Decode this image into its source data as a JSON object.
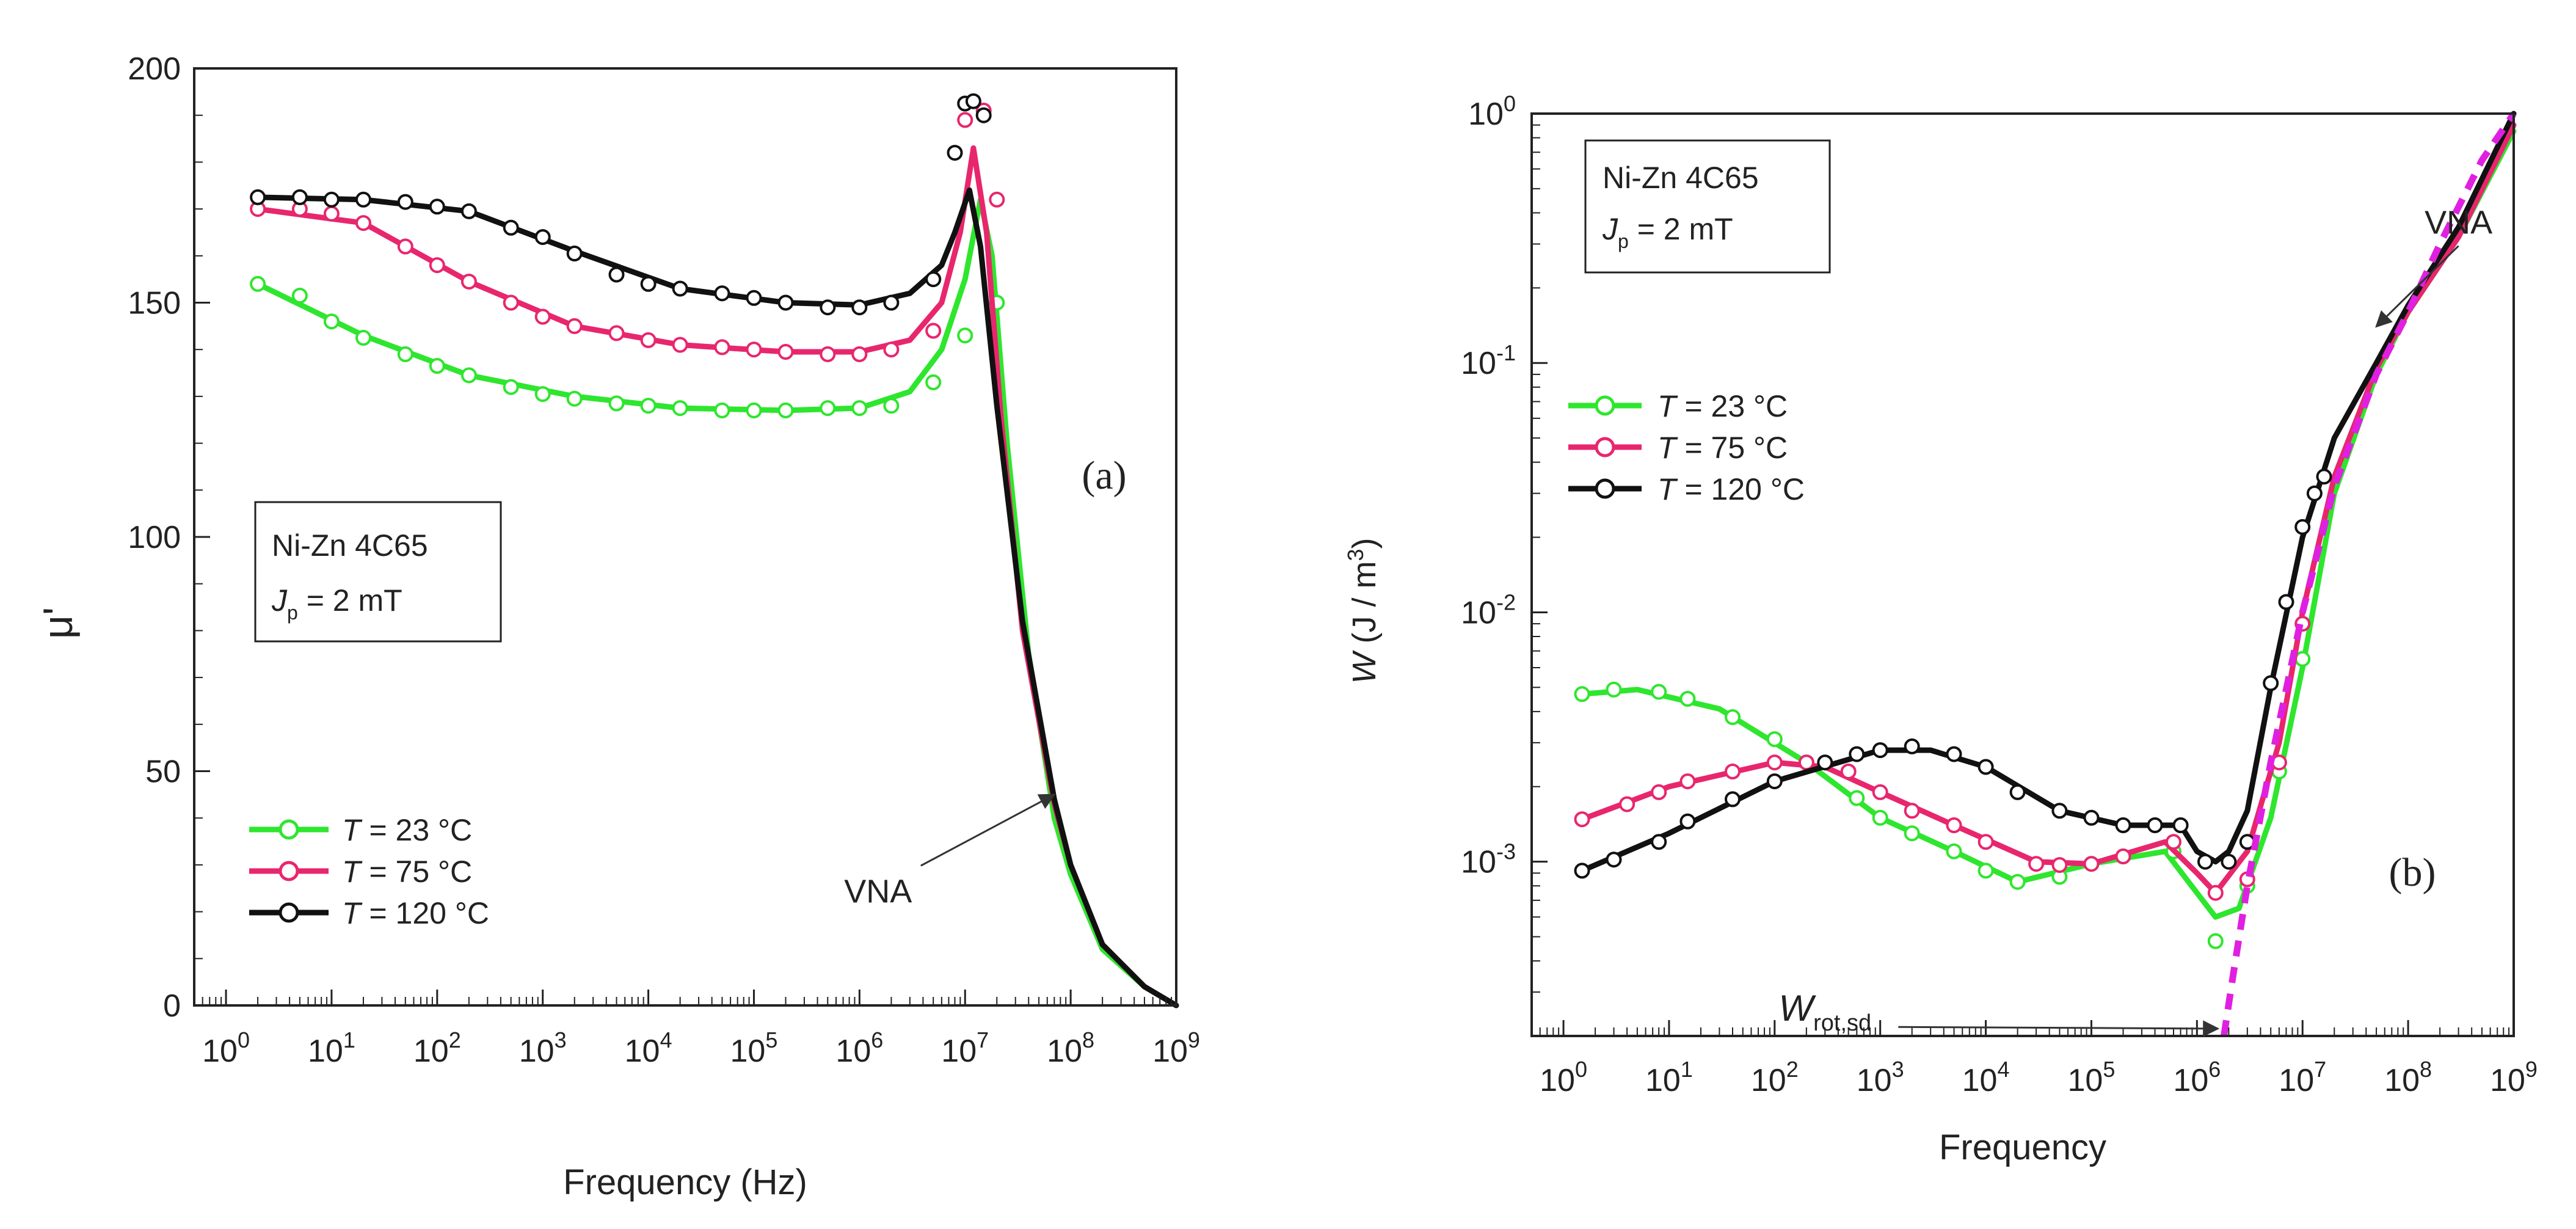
{
  "figure": {
    "line_colors": {
      "green": "#2ee62e",
      "pink": "#e8266e",
      "black": "#111111",
      "magenta_dashed": "#e020e0"
    }
  },
  "chart_data": [
    {
      "id": "a",
      "type": "line",
      "panel_label": "(a)",
      "title": "",
      "xlabel": "Frequency (Hz)",
      "ylabel": "μ'",
      "x_scale": "log10",
      "xlim": [
        0.5,
        1000000000.0
      ],
      "ylim": [
        0,
        200
      ],
      "x_tick_exponents": [
        0,
        1,
        2,
        3,
        4,
        5,
        6,
        7,
        8,
        9
      ],
      "x_tick_base": "10",
      "y_ticks": [
        0,
        50,
        100,
        150,
        200
      ],
      "y_tick_labels": [
        "0",
        "50",
        "100",
        "150",
        "200"
      ],
      "info_box": {
        "line1": "Ni-Zn 4C65",
        "line2_sym": "J",
        "line2_sub": "p",
        "line2_rest": " = 2 mT"
      },
      "annotation": {
        "text": "VNA",
        "text_at": [
          1500000.0,
          22
        ],
        "arrow_to": [
          70000000.0,
          45
        ]
      },
      "legend": {
        "position": "bottom-left"
      },
      "series": [
        {
          "name": "T = 23 °C",
          "legend_sym": "T",
          "legend_rest": " = 23 °C",
          "color": "#2ee62e",
          "x": [
            2,
            5,
            10,
            20,
            50,
            100,
            200,
            500,
            1000,
            2000,
            5000,
            10000,
            20000,
            50000,
            100000,
            200000,
            500000,
            1000000,
            2000000,
            5000000,
            10000000,
            20000000
          ],
          "values": [
            154,
            151.5,
            146,
            142.5,
            139,
            136.5,
            134.5,
            132,
            130.5,
            129.5,
            128.5,
            128,
            127.5,
            127,
            127,
            127,
            127.5,
            127.5,
            128,
            133,
            143,
            150
          ],
          "curve_x": [
            2,
            20,
            200,
            2000,
            20000,
            200000,
            1000000,
            3000000,
            6000000,
            10000000,
            14000000,
            18000000,
            25000000,
            40000000,
            70000000,
            100000000,
            200000000,
            500000000,
            1000000000
          ],
          "curve_y": [
            154,
            143,
            134.5,
            130,
            127.5,
            127,
            127.5,
            131,
            140,
            155,
            172,
            160,
            120,
            75,
            40,
            28,
            12,
            4,
            0
          ]
        },
        {
          "name": "T = 75 °C",
          "legend_sym": "T",
          "legend_rest": " = 75 °C",
          "color": "#e8266e",
          "x": [
            2,
            5,
            10,
            20,
            50,
            100,
            200,
            500,
            1000,
            2000,
            5000,
            10000,
            20000,
            50000,
            100000,
            200000,
            500000,
            1000000,
            2000000,
            5000000,
            10000000,
            15000000,
            20000000
          ],
          "values": [
            170,
            170,
            169,
            167,
            162,
            158,
            154.5,
            150,
            147,
            145,
            143.5,
            142,
            141,
            140.5,
            140,
            139.5,
            139,
            139,
            140,
            144,
            189,
            191,
            172
          ],
          "curve_x": [
            2,
            20,
            200,
            2000,
            20000,
            200000,
            1000000,
            3000000,
            6000000,
            9000000,
            12000000,
            16000000,
            22000000,
            35000000,
            70000000,
            100000000,
            200000000,
            500000000,
            1000000000
          ],
          "curve_y": [
            170,
            167,
            154.5,
            145,
            141,
            139.5,
            139.5,
            142,
            150,
            165,
            183,
            165,
            125,
            80,
            43,
            30,
            13,
            4,
            0
          ]
        },
        {
          "name": "T = 120 °C",
          "legend_sym": "T",
          "legend_rest": " = 120 °C",
          "color": "#111111",
          "x": [
            2,
            5,
            10,
            20,
            50,
            100,
            200,
            500,
            1000,
            2000,
            5000,
            10000,
            20000,
            50000,
            100000,
            200000,
            500000,
            1000000,
            2000000,
            5000000,
            8000000,
            10000000,
            12000000,
            15000000
          ],
          "values": [
            172.5,
            172.5,
            172,
            172,
            171.5,
            170.5,
            169.5,
            166,
            164,
            160.5,
            156,
            154,
            153,
            152,
            151,
            150,
            149,
            149,
            150,
            155,
            182,
            192.5,
            193,
            190
          ],
          "curve_x": [
            2,
            20,
            200,
            2000,
            20000,
            200000,
            1000000,
            3000000,
            6000000,
            8000000,
            11000000,
            14000000,
            20000000,
            35000000,
            70000000,
            100000000,
            200000000,
            500000000,
            1000000000
          ],
          "curve_y": [
            172.5,
            172,
            169.5,
            161,
            153,
            150,
            149.5,
            152,
            158,
            165,
            174,
            162,
            128,
            82,
            44,
            30,
            13,
            4,
            0
          ]
        }
      ]
    },
    {
      "id": "b",
      "type": "line",
      "panel_label": "(b)",
      "title": "",
      "xlabel": "Frequency",
      "ylabel_sym": "W",
      "ylabel_rest": " (J / m",
      "ylabel_sup": "3",
      "ylabel_close": ")",
      "x_scale": "log10",
      "y_scale": "log10",
      "xlim": [
        0.5,
        1000000000.0
      ],
      "ylim": [
        0.0002,
        1.0
      ],
      "x_tick_exponents": [
        0,
        1,
        2,
        3,
        4,
        5,
        6,
        7,
        8,
        9
      ],
      "x_tick_base": "10",
      "y_tick_exponents": [
        -3,
        -2,
        -1,
        0
      ],
      "y_tick_base": "10",
      "y_tick_top_label": "10",
      "info_box": {
        "line1": "Ni-Zn 4C65",
        "line2_sym": "J",
        "line2_sub": "p",
        "line2_rest": " = 2 mT"
      },
      "annotations": [
        {
          "text": "VNA",
          "text_at": [
            300000000.0,
            0.33
          ],
          "arrow_to": [
            50000000.0,
            0.14
          ]
        },
        {
          "text_sym": "W",
          "text_sub": "rot,sd",
          "text_at": [
            300,
            0.00023
          ],
          "arrow_to": [
            1800000.0,
            0.0002
          ]
        }
      ],
      "legend": {
        "position": "upper-left"
      },
      "series": [
        {
          "name": "T = 23 °C",
          "legend_sym": "T",
          "legend_rest": " = 23 °C",
          "color": "#2ee62e",
          "x": [
            1.5,
            3,
            8,
            15,
            40,
            100,
            200,
            600,
            1000,
            2000,
            5000,
            10000,
            20000,
            50000,
            100000,
            200000,
            600000,
            1500000,
            3000000,
            6000000,
            10000000
          ],
          "values": [
            0.0047,
            0.0049,
            0.0048,
            0.0045,
            0.0038,
            0.0031,
            0.0025,
            0.0018,
            0.0015,
            0.0013,
            0.0011,
            0.00092,
            0.00083,
            0.00087,
            0.00098,
            0.00105,
            0.0011,
            0.00048,
            0.0008,
            0.0023,
            0.0065
          ],
          "curve_x": [
            1.5,
            5,
            30,
            200,
            1000,
            5000,
            20000,
            100000,
            500000,
            1000000,
            1500000,
            2500000,
            5000000,
            10000000,
            20000000,
            50000000,
            100000000,
            300000000,
            1000000000
          ],
          "curve_y": [
            0.0047,
            0.0049,
            0.0041,
            0.0025,
            0.0015,
            0.0011,
            0.00083,
            0.00098,
            0.0011,
            0.00075,
            0.0006,
            0.00065,
            0.0015,
            0.006,
            0.03,
            0.09,
            0.16,
            0.32,
            0.85
          ]
        },
        {
          "name": "T = 75 °C",
          "legend_sym": "T",
          "legend_rest": " = 75 °C",
          "color": "#e8266e",
          "x": [
            1.5,
            4,
            8,
            15,
            40,
            100,
            200,
            500,
            1000,
            2000,
            5000,
            10000,
            30000,
            50000,
            100000,
            200000,
            600000,
            1500000,
            3000000,
            6000000,
            10000000
          ],
          "values": [
            0.00148,
            0.0017,
            0.0019,
            0.0021,
            0.0023,
            0.0025,
            0.0025,
            0.0023,
            0.0019,
            0.0016,
            0.0014,
            0.0012,
            0.00098,
            0.00097,
            0.00098,
            0.00105,
            0.0012,
            0.00075,
            0.00085,
            0.0025,
            0.009
          ],
          "curve_x": [
            1.5,
            10,
            100,
            300,
            1000,
            5000,
            30000,
            100000,
            500000,
            1000000,
            1500000,
            3000000,
            6000000,
            10000000,
            20000000,
            50000000,
            100000000,
            300000000,
            1000000000
          ],
          "curve_y": [
            0.00148,
            0.002,
            0.0025,
            0.0024,
            0.0019,
            0.0014,
            0.001,
            0.00098,
            0.0012,
            0.0009,
            0.00075,
            0.0011,
            0.003,
            0.01,
            0.035,
            0.095,
            0.16,
            0.32,
            0.9
          ]
        },
        {
          "name": "T = 120 °C",
          "legend_sym": "T",
          "legend_rest": " = 120 °C",
          "color": "#111111",
          "x": [
            1.5,
            3,
            8,
            15,
            40,
            100,
            300,
            600,
            1000,
            2000,
            5000,
            10000,
            20000,
            50000,
            100000,
            200000,
            400000,
            700000,
            1200000,
            2000000,
            3000000,
            5000000,
            7000000,
            10000000,
            13000000,
            16000000
          ],
          "values": [
            0.00092,
            0.00102,
            0.0012,
            0.00145,
            0.00178,
            0.0021,
            0.0025,
            0.0027,
            0.0028,
            0.0029,
            0.0027,
            0.0024,
            0.0019,
            0.0016,
            0.0015,
            0.0014,
            0.0014,
            0.0014,
            0.001,
            0.001,
            0.0012,
            0.0052,
            0.011,
            0.022,
            0.03,
            0.035
          ],
          "curve_x": [
            1.5,
            10,
            100,
            1000,
            3000,
            10000,
            50000,
            200000,
            700000,
            1000000,
            1500000,
            2000000,
            3000000,
            5000000,
            10000000,
            20000000,
            50000000,
            100000000,
            300000000,
            1000000000
          ],
          "curve_y": [
            0.00092,
            0.0013,
            0.0021,
            0.0028,
            0.0028,
            0.0024,
            0.0016,
            0.0014,
            0.0014,
            0.0011,
            0.001,
            0.0011,
            0.0016,
            0.005,
            0.02,
            0.05,
            0.1,
            0.17,
            0.35,
            1.0
          ]
        },
        {
          "name": "W_rot,sd",
          "color": "#e020e0",
          "style": "dashed",
          "curve_x": [
            1800000,
            2200000,
            3000000,
            5000000,
            10000000,
            20000000,
            50000000,
            100000000,
            200000000,
            500000000,
            1000000000
          ],
          "curve_y": [
            0.0002,
            0.00035,
            0.0008,
            0.0025,
            0.01,
            0.032,
            0.09,
            0.16,
            0.3,
            0.65,
            1.0
          ]
        }
      ]
    }
  ]
}
